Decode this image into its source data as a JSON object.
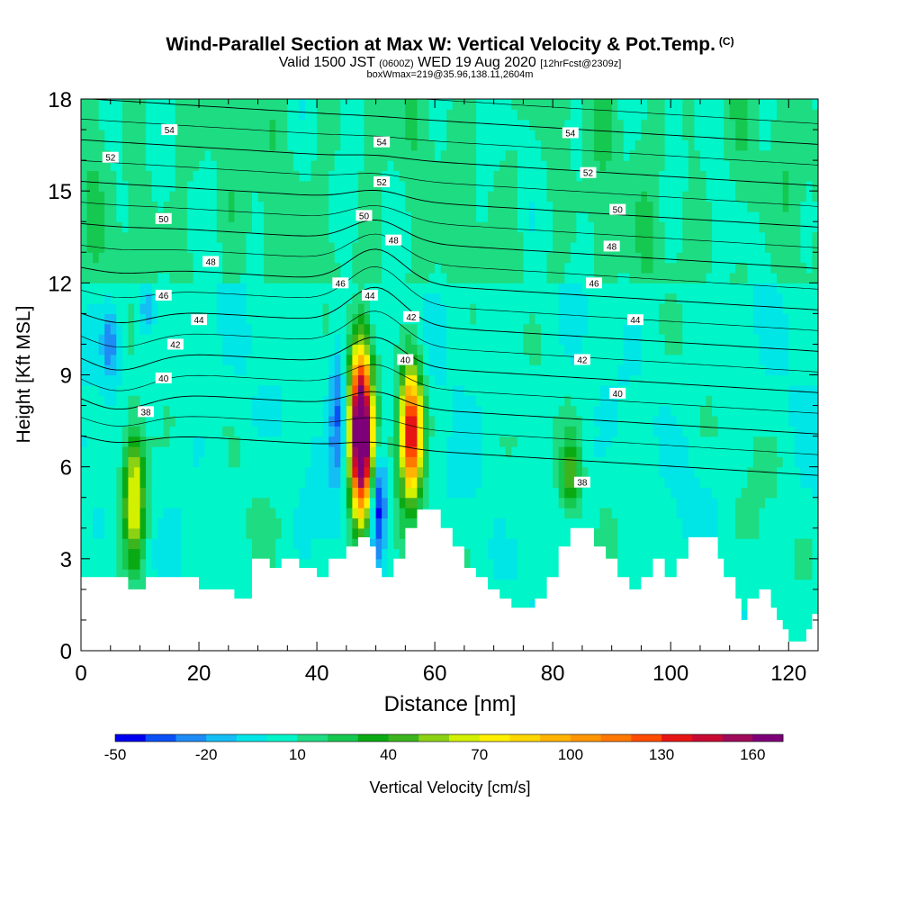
{
  "header": {
    "title": "Wind-Parallel Section at Max W: Vertical Velocity & Pot.Temp.",
    "title_mark": "(C)",
    "valid_prefix": "Valid 1500 JST",
    "valid_utc": "(0600Z)",
    "valid_date": "WED 19 Aug 2020",
    "forecast_info": "[12hrFcst@2309z]",
    "box_info": "boxWmax=219@35.96,138.11,2604m"
  },
  "chart_data": {
    "type": "heatmap",
    "title": "Wind-Parallel Section at Max W: Vertical Velocity & Pot.Temp.",
    "xlabel": "Distance [nm]",
    "ylabel": "Height [Kft MSL]",
    "xlim": [
      0,
      125
    ],
    "ylim": [
      0,
      18
    ],
    "x_ticks": [
      0,
      20,
      40,
      60,
      80,
      100,
      120
    ],
    "y_ticks": [
      0,
      3,
      6,
      9,
      12,
      15,
      18
    ],
    "colorbar": {
      "label": "Vertical Velocity [cm/s]",
      "ticks": [
        "-50",
        "-20",
        "10",
        "40",
        "70",
        "100",
        "130",
        "160"
      ],
      "levels": [
        -50,
        -40,
        -30,
        -20,
        -10,
        0,
        10,
        20,
        30,
        40,
        50,
        60,
        70,
        80,
        90,
        100,
        110,
        120,
        130,
        140,
        150,
        160,
        170
      ],
      "colors": [
        "#0000f0",
        "#0a50f5",
        "#1e8cf5",
        "#14bef5",
        "#00e6e6",
        "#00f5c8",
        "#1edc82",
        "#14c850",
        "#0aaa14",
        "#3cb41e",
        "#8cd214",
        "#d2f000",
        "#fff000",
        "#ffd700",
        "#ffb400",
        "#ff9600",
        "#ff7800",
        "#ff4b00",
        "#e61414",
        "#c80a32",
        "#a00a5a",
        "#7d0078"
      ]
    },
    "updrafts": [
      {
        "x": 9,
        "z_bottom": 2.2,
        "z_top": 8.0,
        "wmax": 75
      },
      {
        "x": 47.5,
        "z_bottom": 3.7,
        "z_top": 10.5,
        "wmax": 219
      },
      {
        "x": 56,
        "z_bottom": 4.5,
        "z_top": 9.8,
        "wmax": 150
      },
      {
        "x": 83,
        "z_bottom": 4.0,
        "z_top": 7.5,
        "wmax": 45
      }
    ],
    "downdrafts": [
      {
        "x": 50.5,
        "z_bottom": 2.6,
        "z_top": 7.0,
        "wmin": -50
      },
      {
        "x": 43.5,
        "z_bottom": 5.0,
        "z_top": 11.0,
        "wmin": -30
      },
      {
        "x": 5,
        "z_bottom": 8.5,
        "z_top": 11.5,
        "wmin": -25
      },
      {
        "x": 11,
        "z_bottom": 10.0,
        "z_top": 12.3,
        "wmin": -20
      }
    ],
    "terrain": {
      "x": [
        0,
        6,
        8,
        11,
        16,
        20,
        23,
        26,
        29,
        32,
        34,
        37,
        40,
        42,
        45,
        47,
        49,
        50,
        51,
        53,
        55,
        57,
        59,
        61,
        63,
        65,
        67,
        69,
        71,
        73,
        75,
        77,
        79,
        81,
        83,
        85,
        87,
        89,
        91,
        93,
        95,
        97,
        99,
        101,
        103,
        105,
        107,
        108,
        109,
        111,
        112,
        113,
        115,
        117,
        118,
        119,
        120,
        121,
        122,
        123,
        124,
        125
      ],
      "z": [
        2.4,
        2.4,
        2.0,
        2.4,
        2.4,
        2.0,
        2.0,
        1.7,
        3.0,
        2.7,
        3.0,
        2.7,
        2.4,
        3.0,
        3.4,
        3.7,
        3.4,
        2.7,
        2.4,
        3.0,
        4.0,
        4.6,
        4.6,
        4.0,
        3.4,
        2.7,
        2.4,
        2.0,
        1.7,
        1.4,
        1.4,
        1.7,
        2.4,
        3.4,
        4.0,
        4.0,
        3.4,
        3.0,
        2.4,
        2.0,
        2.4,
        3.0,
        2.4,
        3.0,
        3.7,
        3.7,
        3.7,
        3.0,
        2.4,
        1.7,
        1.0,
        1.7,
        2.0,
        1.4,
        1.0,
        0.7,
        0.3,
        0.3,
        0.3,
        0.7,
        1.2,
        1.4
      ]
    },
    "isentropes": [
      {
        "theta": 38,
        "labels": [
          {
            "x": 11,
            "z": 7.8
          },
          {
            "x": 85,
            "z": 5.5
          }
        ]
      },
      {
        "theta": 40,
        "labels": [
          {
            "x": 14,
            "z": 8.9
          },
          {
            "x": 55,
            "z": 9.5
          },
          {
            "x": 91,
            "z": 8.4
          }
        ]
      },
      {
        "theta": 42,
        "labels": [
          {
            "x": 16,
            "z": 10.0
          },
          {
            "x": 56,
            "z": 10.9
          },
          {
            "x": 85,
            "z": 9.5
          }
        ]
      },
      {
        "theta": 44,
        "labels": [
          {
            "x": 20,
            "z": 10.8
          },
          {
            "x": 49,
            "z": 11.6
          },
          {
            "x": 94,
            "z": 10.8
          }
        ]
      },
      {
        "theta": 46,
        "labels": [
          {
            "x": 14,
            "z": 11.6
          },
          {
            "x": 44,
            "z": 12.0
          },
          {
            "x": 87,
            "z": 12.0
          }
        ]
      },
      {
        "theta": 48,
        "labels": [
          {
            "x": 22,
            "z": 12.7
          },
          {
            "x": 53,
            "z": 13.4
          },
          {
            "x": 90,
            "z": 13.2
          }
        ]
      },
      {
        "theta": 50,
        "labels": [
          {
            "x": 14,
            "z": 14.1
          },
          {
            "x": 48,
            "z": 14.2
          },
          {
            "x": 91,
            "z": 14.4
          }
        ]
      },
      {
        "theta": 52,
        "labels": [
          {
            "x": 5,
            "z": 16.1
          },
          {
            "x": 51,
            "z": 15.3
          },
          {
            "x": 86,
            "z": 15.6
          }
        ]
      },
      {
        "theta": 54,
        "labels": [
          {
            "x": 15,
            "z": 17.0
          },
          {
            "x": 51,
            "z": 16.6
          },
          {
            "x": 83,
            "z": 16.9
          }
        ]
      }
    ]
  }
}
